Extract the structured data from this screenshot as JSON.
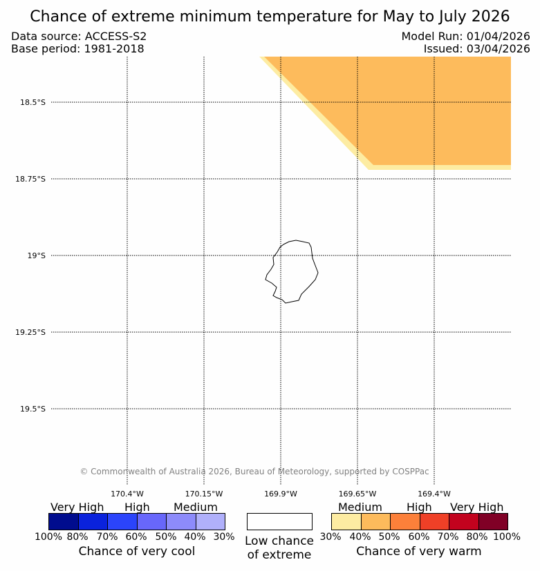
{
  "title": "Chance of extreme minimum temperature for May to July 2026",
  "data_source": "Data source: ACCESS-S2",
  "base_period": "Base period: 1981-2018",
  "model_run": "Model Run: 01/04/2026",
  "issued": "Issued: 03/04/2026",
  "latitudes": [
    "18.5°S",
    "18.75°S",
    "19°S",
    "19.25°S",
    "19.5°S"
  ],
  "longitudes": [
    "170.4°W",
    "170.15°W",
    "169.9°W",
    "169.65°W",
    "169.4°W"
  ],
  "copyright": "© Commonwealth of Australia 2026, Bureau of Meteorology, supported by COSPPac",
  "map_regions": [
    {
      "category": "warm-medium",
      "range": "30-40%",
      "color": "#fdeca2"
    },
    {
      "category": "warm-medium",
      "range": "40-50%",
      "color": "#fdbb5c"
    }
  ],
  "legend": {
    "cool": {
      "colors": [
        "#000c8e",
        "#0a22dc",
        "#2b44fb",
        "#6867fb",
        "#8d8bfb",
        "#b0b0fb"
      ],
      "ticks": [
        "100%",
        "80%",
        "70%",
        "60%",
        "50%",
        "40%",
        "30%"
      ],
      "categories": [
        "Very High",
        "High",
        "Medium"
      ],
      "caption": "Chance of very cool"
    },
    "neutral": {
      "color": "#ffffff",
      "caption_line1": "Low chance",
      "caption_line2": "of extreme"
    },
    "warm": {
      "colors": [
        "#fdeca2",
        "#fdbb5c",
        "#fc803a",
        "#ef4027",
        "#c2021e",
        "#800026"
      ],
      "ticks": [
        "30%",
        "40%",
        "50%",
        "60%",
        "70%",
        "80%",
        "100%"
      ],
      "categories": [
        "Medium",
        "High",
        "Very High"
      ],
      "caption": "Chance of very warm"
    }
  }
}
